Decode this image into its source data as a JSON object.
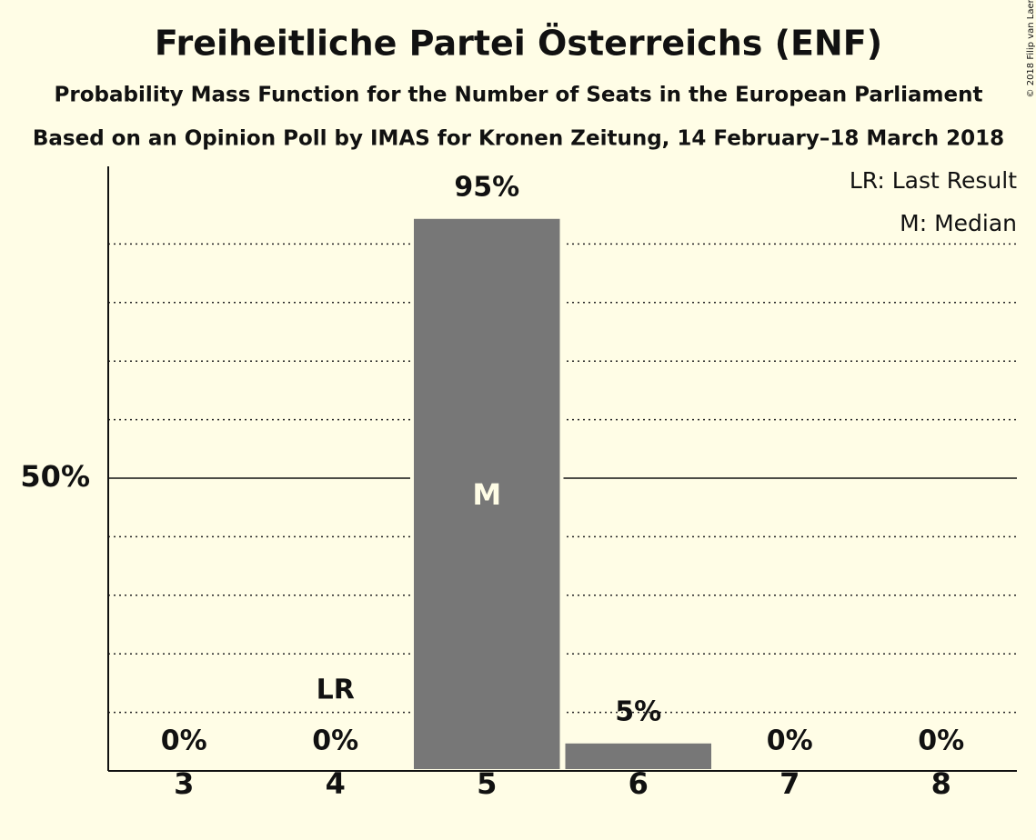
{
  "chart_data": {
    "type": "bar",
    "title": "Freiheitliche Partei Österreichs (ENF)",
    "subtitle": "Probability Mass Function for the Number of Seats in the European Parliament",
    "subtitle2": "Based on an Opinion Poll by IMAS for Kronen Zeitung, 14 February–18 March 2018",
    "categories": [
      3,
      4,
      5,
      6,
      7,
      8
    ],
    "values": [
      0,
      0,
      94.6,
      5,
      0,
      0
    ],
    "value_labels": [
      "0%",
      "0%",
      "95%",
      "5%",
      "0%",
      "0%"
    ],
    "color": "#777777",
    "ylim": [
      0,
      100
    ],
    "yticks": [
      {
        "value": 50,
        "label": "50%"
      }
    ],
    "minor_yticks": [
      10,
      20,
      30,
      40,
      60,
      70,
      80,
      90
    ],
    "grid": true,
    "last_result": {
      "label": "LR",
      "seat": 4
    },
    "median": {
      "label": "M",
      "seat": 5
    },
    "legend": [
      "LR: Last Result",
      "M: Median"
    ],
    "legend_position": "top-right",
    "copyright": "© 2018 Filip van Laenen"
  }
}
